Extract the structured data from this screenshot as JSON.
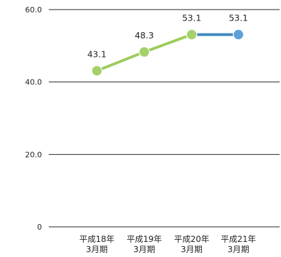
{
  "chart_data": {
    "type": "line",
    "categories": [
      [
        "平成18年",
        "3月期"
      ],
      [
        "平成19年",
        "3月期"
      ],
      [
        "平成20年",
        "3月期"
      ],
      [
        "平成21年",
        "3月期"
      ]
    ],
    "values": [
      43.1,
      48.3,
      53.1,
      53.1
    ],
    "data_labels": [
      "43.1",
      "48.3",
      "53.1",
      "53.1"
    ],
    "y_ticks": [
      {
        "value": 0,
        "label": "0"
      },
      {
        "value": 20,
        "label": "20.0"
      },
      {
        "value": 40,
        "label": "40.0"
      },
      {
        "value": 60,
        "label": "60.0"
      }
    ],
    "ylim": [
      0,
      60
    ],
    "grid": true,
    "legend": "none",
    "colors": {
      "past_line": "#9ccc5a",
      "past_point": "#a6d06a",
      "latest_line": "#3f88c0",
      "latest_point": "#5da0d8",
      "grid": "#222222",
      "text": "#222222"
    }
  }
}
